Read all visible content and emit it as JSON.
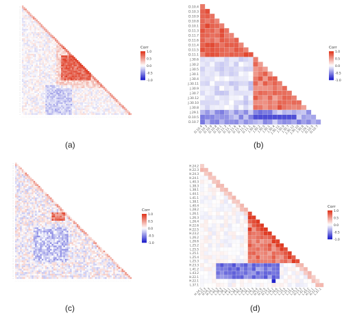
{
  "colors": {
    "positive": "#e03a22",
    "neutral": "#ffffff",
    "negative": "#2222cc",
    "grid": "#e6e6e6",
    "tick_text": "#555555"
  },
  "panels": [
    {
      "label": "(a)"
    },
    {
      "label": "(b)"
    },
    {
      "label": "(c)"
    },
    {
      "label": "(d)"
    }
  ],
  "chart_data": [
    {
      "type": "heatmap",
      "panel": "(a)",
      "matrix": "lower-triangular correlation matrix",
      "n_variables": 70,
      "tick_labels_legible": false,
      "colorscale": {
        "title": "Corr",
        "ticks": [
          "1.0",
          "0.5",
          "0.0",
          "-0.5",
          "-1.0"
        ],
        "range": [
          -1,
          1
        ]
      },
      "pattern_note": "dense strong positive block in upper-right of triangle; mostly weak values elsewhere"
    },
    {
      "type": "heatmap",
      "panel": "(b)",
      "matrix": "lower-triangular correlation matrix",
      "variables": [
        "D.10.4",
        "D.10.3",
        "D.10.9",
        "D.10.8",
        "D.10.1",
        "D.11.3",
        "D.11.7",
        "D.11.6",
        "D.11.4",
        "D.11.5",
        "D.11.1",
        "J.30.6",
        "J.30.2",
        "J.30.5",
        "J.30.1",
        "J.30.4",
        "J.30.11",
        "J.30.9",
        "J.30.7",
        "J.30.12",
        "J.30.10",
        "J.30.8",
        "J.29.1",
        "D.10.5",
        "D.10.7"
      ],
      "colorscale": {
        "title": "Corr",
        "ticks": [
          "1.0",
          "0.5",
          "0.0",
          "-0.5",
          "-1.0"
        ],
        "range": [
          -1,
          1
        ]
      },
      "pattern_note": "strong positive blocks within the D.10/D.11 group and within the J.30 group; near zero to negative between groups"
    },
    {
      "type": "heatmap",
      "panel": "(c)",
      "matrix": "lower-triangular correlation matrix",
      "n_variables": 70,
      "tick_labels_legible": false,
      "colorscale": {
        "title": "Corr",
        "ticks": [
          "1.0",
          "0.5",
          "0.0",
          "-0.5",
          "-1.0"
        ],
        "range": [
          -1,
          1
        ]
      },
      "pattern_note": "mixed weak positive and negative values with a small positive cluster"
    },
    {
      "type": "heatmap",
      "panel": "(d)",
      "matrix": "lower-triangular correlation matrix",
      "variables": [
        "H.24.2",
        "H.22.3",
        "H.24.3",
        "H.24.1",
        "L.40.3",
        "L.38.3",
        "L.38.1",
        "L.44.1",
        "L.41.1",
        "L.38.1",
        "L.40.4",
        "L.28.2",
        "L.26.1",
        "L.26.3",
        "L.26.4",
        "H.22.6",
        "H.22.5",
        "H.23.2",
        "L.26.2",
        "L.26.6",
        "L.25.2",
        "L.25.5",
        "L.25.1",
        "L.25.4",
        "L.25.3",
        "H.23.3",
        "L.41.2",
        "L.43.2",
        "H.22.1",
        "H.22.1",
        "L.37.1"
      ],
      "colorscale": {
        "title": "Corr",
        "ticks": [
          "1.0",
          "0.5",
          "0.0",
          "-0.5",
          "-1.0"
        ],
        "range": [
          -1,
          1
        ]
      },
      "pattern_note": "positive block among the L.25 / L.26 / H.22 group; negative band across the lower-middle rows; one strong negative cell"
    }
  ]
}
